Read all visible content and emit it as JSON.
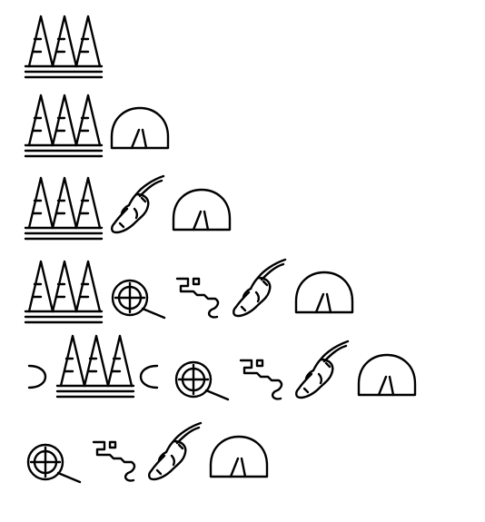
{
  "ink_color": "#000000",
  "background_color": "#ffffff",
  "sign_names": [
    "hill-country-sign",
    "mouth-sign",
    "oryx-head-sign",
    "placenta-sign",
    "twisted-flax-sign",
    "bread-loaf-sign",
    "cartouche-sign"
  ],
  "rows": [
    {
      "signs": [
        "hill-country-sign"
      ]
    },
    {
      "signs": [
        "hill-country-sign",
        "bread-loaf-sign"
      ]
    },
    {
      "signs": [
        "hill-country-sign",
        "oryx-head-sign",
        "bread-loaf-sign"
      ]
    },
    {
      "signs": [
        "hill-country-sign",
        "placenta-sign",
        "twisted-flax-sign",
        "oryx-head-sign",
        "bread-loaf-sign"
      ]
    },
    {
      "signs": [
        "cartouche-open",
        "hill-country-sign",
        "cartouche-close",
        "placenta-sign",
        "twisted-flax-sign",
        "oryx-head-sign",
        "bread-loaf-sign"
      ]
    },
    {
      "signs": [
        "placenta-sign",
        "twisted-flax-sign",
        "oryx-head-sign",
        "bread-loaf-sign"
      ]
    }
  ]
}
